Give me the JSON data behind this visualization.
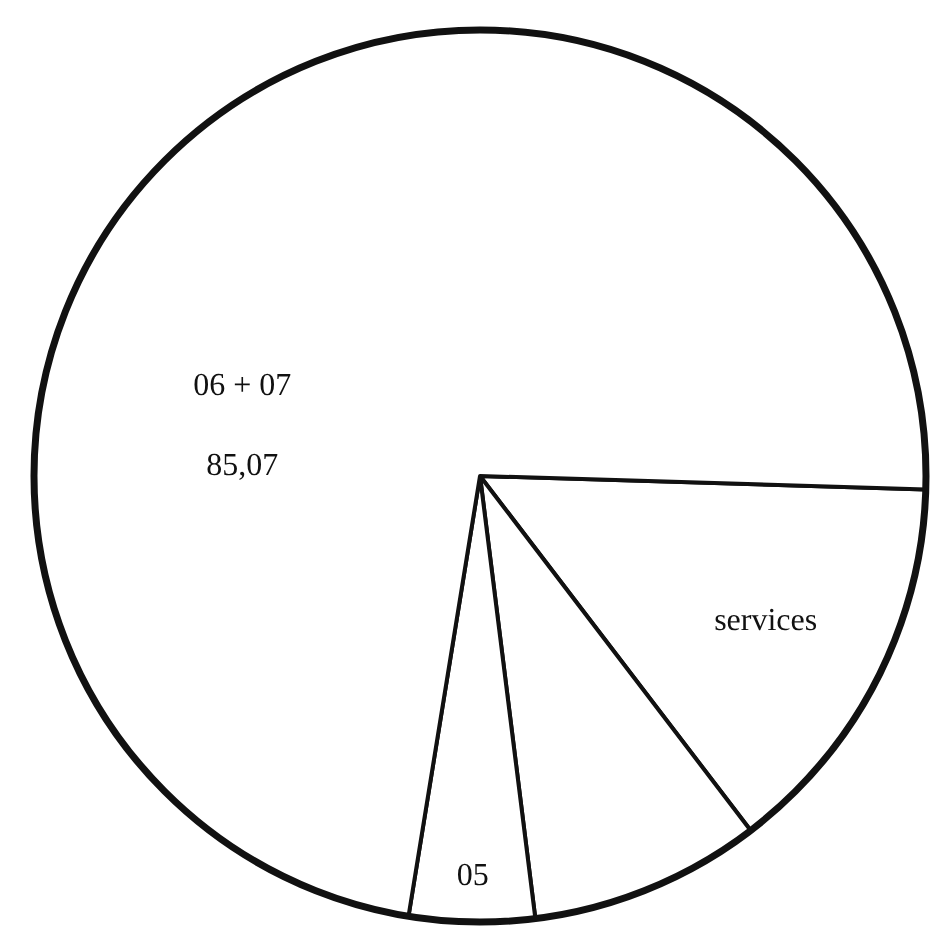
{
  "chart_data": {
    "type": "pie",
    "categories": [
      "services",
      null,
      "05",
      "06 + 07"
    ],
    "values": [
      16.5,
      9.8,
      5.3,
      85.07
    ],
    "value_labels": [
      null,
      null,
      null,
      "85,07"
    ],
    "colors": [
      "#ffffff",
      "#ffffff",
      "#ffffff",
      "#ffffff"
    ]
  }
}
